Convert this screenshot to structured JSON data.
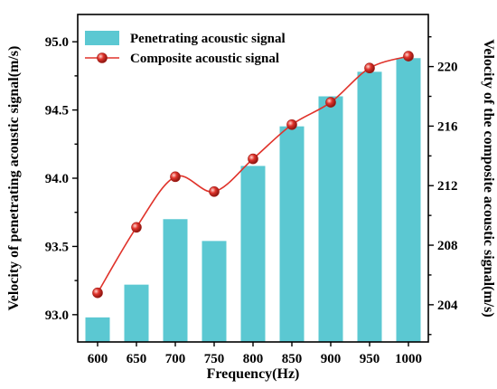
{
  "chart_data": {
    "type": "bar+line",
    "categories": [
      "600",
      "650",
      "700",
      "750",
      "800",
      "850",
      "900",
      "950",
      "1000"
    ],
    "xlabel": "Frequency(Hz)",
    "series": [
      {
        "name": "Penetrating acoustic signal",
        "type": "bar",
        "axis": "left",
        "values": [
          92.98,
          93.22,
          93.7,
          93.54,
          94.09,
          94.38,
          94.6,
          94.78,
          94.88
        ]
      },
      {
        "name": "Composite acoustic signal",
        "type": "line",
        "axis": "right",
        "values": [
          204.8,
          209.2,
          212.6,
          211.6,
          213.8,
          216.1,
          217.6,
          219.9,
          220.7
        ]
      }
    ],
    "y_left": {
      "label": "Velocity of penetrating acoustic signal(m/s)",
      "ylim": [
        92.8,
        95.2
      ],
      "ticks": [
        "93.0",
        "93.5",
        "94.0",
        "94.5",
        "95.0"
      ]
    },
    "y_right": {
      "label": "Velocity of the composite acoustic signal(m/s)",
      "ylim": [
        201.5,
        223.5
      ],
      "ticks": [
        "204",
        "208",
        "212",
        "216",
        "220"
      ]
    },
    "legend": "top-left",
    "grid": false,
    "colors": {
      "bar": "#5bc8d2",
      "line": "#e0332b",
      "marker": "#e0332b"
    }
  }
}
